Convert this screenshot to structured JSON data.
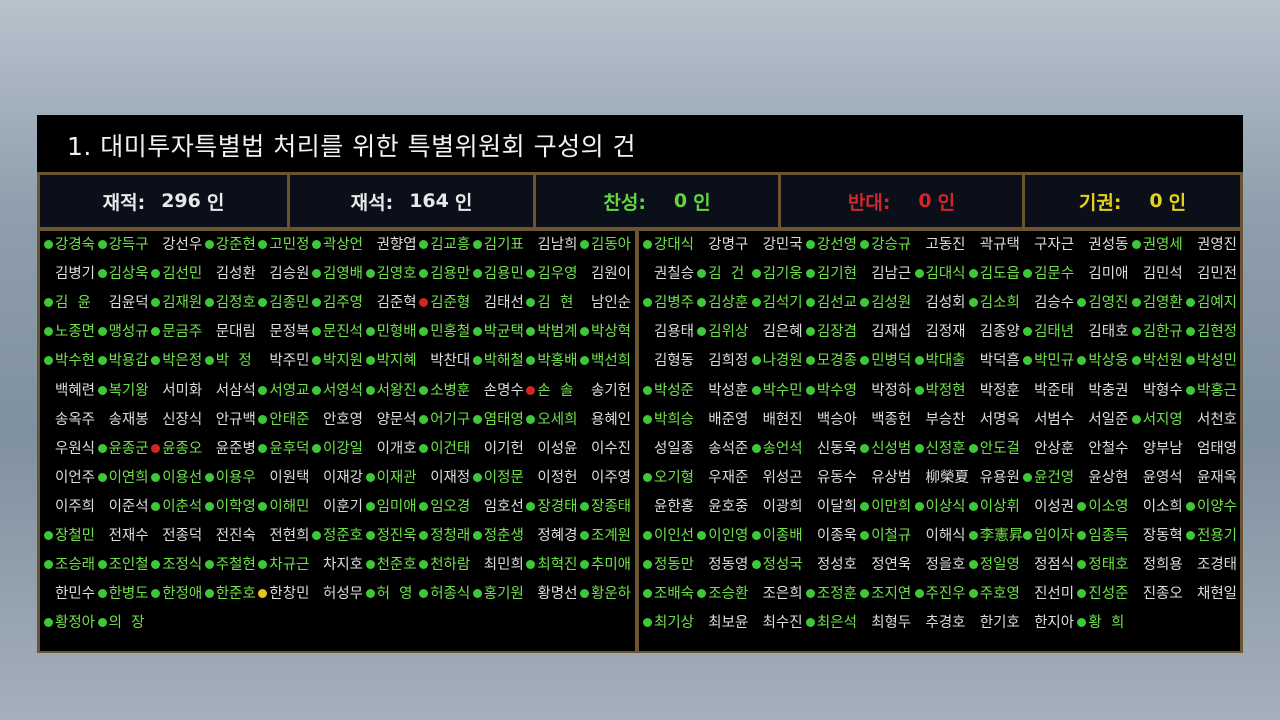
{
  "title": "1. 대미투자특별법 처리를 위한 특별위원회 구성의 건",
  "stats": [
    {
      "label": "재적:",
      "value": "296",
      "unit": "인",
      "color": "#e8e8e8"
    },
    {
      "label": "재석:",
      "value": "164",
      "unit": "인",
      "color": "#e8e8e8"
    },
    {
      "label": "찬성:",
      "value": "0",
      "unit": "인",
      "color": "#5fd93f"
    },
    {
      "label": "반대:",
      "value": "0",
      "unit": "인",
      "color": "#d3262a"
    },
    {
      "label": "기권:",
      "value": "0",
      "unit": "인",
      "color": "#e3d21c"
    }
  ],
  "status_legend": {
    "g": "green-dot (voted/present)",
    "r": "red-dot",
    "y": "yellow-dot",
    "w": "no indicator"
  },
  "panels": [
    {
      "rows": [
        [
          [
            "강경숙",
            "g"
          ],
          [
            "강득구",
            "g"
          ],
          [
            "강선우",
            "w"
          ],
          [
            "강준현",
            "g"
          ],
          [
            "고민정",
            "g"
          ],
          [
            "곽상언",
            "g"
          ],
          [
            "권향엽",
            "w"
          ],
          [
            "김교흥",
            "g"
          ],
          [
            "김기표",
            "g"
          ],
          [
            "김남희",
            "w"
          ],
          [
            "김동아",
            "g"
          ]
        ],
        [
          [
            "김병기",
            "w"
          ],
          [
            "김상욱",
            "g"
          ],
          [
            "김선민",
            "g"
          ],
          [
            "김성환",
            "w"
          ],
          [
            "김승원",
            "w"
          ],
          [
            "김영배",
            "g"
          ],
          [
            "김영호",
            "g"
          ],
          [
            "김용만",
            "g"
          ],
          [
            "김용민",
            "g"
          ],
          [
            "김우영",
            "g"
          ],
          [
            "김원이",
            "w"
          ]
        ],
        [
          [
            "김  윤",
            "g"
          ],
          [
            "김윤덕",
            "w"
          ],
          [
            "김재원",
            "g"
          ],
          [
            "김정호",
            "g"
          ],
          [
            "김종민",
            "g"
          ],
          [
            "김주영",
            "g"
          ],
          [
            "김준혁",
            "w"
          ],
          [
            "김준형",
            "r"
          ],
          [
            "김태선",
            "w"
          ],
          [
            "김  현",
            "g"
          ],
          [
            "남인순",
            "w"
          ]
        ],
        [
          [
            "노종면",
            "g"
          ],
          [
            "맹성규",
            "g"
          ],
          [
            "문금주",
            "g"
          ],
          [
            "문대림",
            "w"
          ],
          [
            "문정복",
            "w"
          ],
          [
            "문진석",
            "g"
          ],
          [
            "민형배",
            "g"
          ],
          [
            "민홍철",
            "g"
          ],
          [
            "박균택",
            "g"
          ],
          [
            "박범계",
            "g"
          ],
          [
            "박상혁",
            "g"
          ]
        ],
        [
          [
            "박수현",
            "g"
          ],
          [
            "박용갑",
            "g"
          ],
          [
            "박은정",
            "g"
          ],
          [
            "박  정",
            "g"
          ],
          [
            "박주민",
            "w"
          ],
          [
            "박지원",
            "g"
          ],
          [
            "박지혜",
            "g"
          ],
          [
            "박찬대",
            "w"
          ],
          [
            "박해철",
            "g"
          ],
          [
            "박홍배",
            "g"
          ],
          [
            "백선희",
            "g"
          ]
        ],
        [
          [
            "백혜련",
            "w"
          ],
          [
            "복기왕",
            "g"
          ],
          [
            "서미화",
            "w"
          ],
          [
            "서삼석",
            "w"
          ],
          [
            "서영교",
            "g"
          ],
          [
            "서영석",
            "g"
          ],
          [
            "서왕진",
            "g"
          ],
          [
            "소병훈",
            "g"
          ],
          [
            "손명수",
            "w"
          ],
          [
            "손  솔",
            "r"
          ],
          [
            "송기헌",
            "w"
          ]
        ],
        [
          [
            "송옥주",
            "w"
          ],
          [
            "송재봉",
            "w"
          ],
          [
            "신장식",
            "w"
          ],
          [
            "안규백",
            "w"
          ],
          [
            "안태준",
            "g"
          ],
          [
            "안호영",
            "w"
          ],
          [
            "양문석",
            "w"
          ],
          [
            "어기구",
            "g"
          ],
          [
            "염태영",
            "g"
          ],
          [
            "오세희",
            "g"
          ],
          [
            "용혜인",
            "w"
          ]
        ],
        [
          [
            "우원식",
            "w"
          ],
          [
            "윤종군",
            "g"
          ],
          [
            "윤종오",
            "r"
          ],
          [
            "윤준병",
            "w"
          ],
          [
            "윤후덕",
            "g"
          ],
          [
            "이강일",
            "g"
          ],
          [
            "이개호",
            "w"
          ],
          [
            "이건태",
            "g"
          ],
          [
            "이기헌",
            "w"
          ],
          [
            "이성윤",
            "w"
          ],
          [
            "이수진",
            "w"
          ]
        ],
        [
          [
            "이언주",
            "w"
          ],
          [
            "이연희",
            "g"
          ],
          [
            "이용선",
            "g"
          ],
          [
            "이용우",
            "g"
          ],
          [
            "이원택",
            "w"
          ],
          [
            "이재강",
            "w"
          ],
          [
            "이재관",
            "g"
          ],
          [
            "이재정",
            "w"
          ],
          [
            "이정문",
            "g"
          ],
          [
            "이정헌",
            "w"
          ],
          [
            "이주영",
            "w"
          ]
        ],
        [
          [
            "이주희",
            "w"
          ],
          [
            "이준석",
            "w"
          ],
          [
            "이춘석",
            "g"
          ],
          [
            "이학영",
            "g"
          ],
          [
            "이해민",
            "g"
          ],
          [
            "이훈기",
            "w"
          ],
          [
            "임미애",
            "g"
          ],
          [
            "임오경",
            "g"
          ],
          [
            "임호선",
            "w"
          ],
          [
            "장경태",
            "g"
          ],
          [
            "장종태",
            "g"
          ]
        ],
        [
          [
            "장철민",
            "g"
          ],
          [
            "전재수",
            "w"
          ],
          [
            "전종덕",
            "w"
          ],
          [
            "전진숙",
            "w"
          ],
          [
            "전현희",
            "w"
          ],
          [
            "정준호",
            "g"
          ],
          [
            "정진욱",
            "g"
          ],
          [
            "정청래",
            "g"
          ],
          [
            "정춘생",
            "g"
          ],
          [
            "정혜경",
            "w"
          ],
          [
            "조계원",
            "g"
          ]
        ],
        [
          [
            "조승래",
            "g"
          ],
          [
            "조인철",
            "g"
          ],
          [
            "조정식",
            "g"
          ],
          [
            "주철현",
            "g"
          ],
          [
            "차규근",
            "g"
          ],
          [
            "차지호",
            "w"
          ],
          [
            "천준호",
            "g"
          ],
          [
            "천하람",
            "g"
          ],
          [
            "최민희",
            "w"
          ],
          [
            "최혁진",
            "g"
          ],
          [
            "추미애",
            "g"
          ]
        ],
        [
          [
            "한민수",
            "w"
          ],
          [
            "한병도",
            "g"
          ],
          [
            "한정애",
            "g"
          ],
          [
            "한준호",
            "g"
          ],
          [
            "한창민",
            "y"
          ],
          [
            "허성무",
            "w"
          ],
          [
            "허  영",
            "g"
          ],
          [
            "허종식",
            "g"
          ],
          [
            "홍기원",
            "g"
          ],
          [
            "황명선",
            "w"
          ],
          [
            "황운하",
            "g"
          ]
        ],
        [
          [
            "황정아",
            "g"
          ],
          [
            "의  장",
            "g"
          ]
        ]
      ]
    },
    {
      "rows": [
        [
          [
            "강대식",
            "g"
          ],
          [
            "강명구",
            "w"
          ],
          [
            "강민국",
            "w"
          ],
          [
            "강선영",
            "g"
          ],
          [
            "강승규",
            "g"
          ],
          [
            "고동진",
            "w"
          ],
          [
            "곽규택",
            "w"
          ],
          [
            "구자근",
            "w"
          ],
          [
            "권성동",
            "w"
          ],
          [
            "권영세",
            "g"
          ],
          [
            "권영진",
            "w"
          ]
        ],
        [
          [
            "권칠승",
            "w"
          ],
          [
            "김  건",
            "g"
          ],
          [
            "김기웅",
            "g"
          ],
          [
            "김기현",
            "g"
          ],
          [
            "김남근",
            "w"
          ],
          [
            "김대식",
            "g"
          ],
          [
            "김도읍",
            "g"
          ],
          [
            "김문수",
            "g"
          ],
          [
            "김미애",
            "w"
          ],
          [
            "김민석",
            "w"
          ],
          [
            "김민전",
            "w"
          ]
        ],
        [
          [
            "김병주",
            "g"
          ],
          [
            "김상훈",
            "g"
          ],
          [
            "김석기",
            "g"
          ],
          [
            "김선교",
            "g"
          ],
          [
            "김성원",
            "g"
          ],
          [
            "김성회",
            "w"
          ],
          [
            "김소희",
            "g"
          ],
          [
            "김승수",
            "w"
          ],
          [
            "김영진",
            "g"
          ],
          [
            "김영환",
            "g"
          ],
          [
            "김예지",
            "g"
          ]
        ],
        [
          [
            "김용태",
            "w"
          ],
          [
            "김위상",
            "g"
          ],
          [
            "김은혜",
            "w"
          ],
          [
            "김장겸",
            "g"
          ],
          [
            "김재섭",
            "w"
          ],
          [
            "김정재",
            "w"
          ],
          [
            "김종양",
            "w"
          ],
          [
            "김태년",
            "g"
          ],
          [
            "김태호",
            "w"
          ],
          [
            "김한규",
            "g"
          ],
          [
            "김현정",
            "g"
          ]
        ],
        [
          [
            "김형동",
            "w"
          ],
          [
            "김희정",
            "w"
          ],
          [
            "나경원",
            "g"
          ],
          [
            "모경종",
            "g"
          ],
          [
            "민병덕",
            "g"
          ],
          [
            "박대출",
            "g"
          ],
          [
            "박덕흠",
            "w"
          ],
          [
            "박민규",
            "g"
          ],
          [
            "박상웅",
            "g"
          ],
          [
            "박선원",
            "g"
          ],
          [
            "박성민",
            "g"
          ]
        ],
        [
          [
            "박성준",
            "g"
          ],
          [
            "박성훈",
            "w"
          ],
          [
            "박수민",
            "g"
          ],
          [
            "박수영",
            "g"
          ],
          [
            "박정하",
            "w"
          ],
          [
            "박정현",
            "g"
          ],
          [
            "박정훈",
            "w"
          ],
          [
            "박준태",
            "w"
          ],
          [
            "박충권",
            "w"
          ],
          [
            "박형수",
            "w"
          ],
          [
            "박홍근",
            "g"
          ]
        ],
        [
          [
            "박희승",
            "g"
          ],
          [
            "배준영",
            "w"
          ],
          [
            "배현진",
            "w"
          ],
          [
            "백승아",
            "w"
          ],
          [
            "백종헌",
            "w"
          ],
          [
            "부승찬",
            "w"
          ],
          [
            "서명옥",
            "w"
          ],
          [
            "서범수",
            "w"
          ],
          [
            "서일준",
            "w"
          ],
          [
            "서지영",
            "g"
          ],
          [
            "서천호",
            "w"
          ]
        ],
        [
          [
            "성일종",
            "w"
          ],
          [
            "송석준",
            "w"
          ],
          [
            "송언석",
            "g"
          ],
          [
            "신동욱",
            "w"
          ],
          [
            "신성범",
            "g"
          ],
          [
            "신정훈",
            "g"
          ],
          [
            "안도걸",
            "g"
          ],
          [
            "안상훈",
            "w"
          ],
          [
            "안철수",
            "w"
          ],
          [
            "양부남",
            "w"
          ],
          [
            "엄태영",
            "w"
          ]
        ],
        [
          [
            "오기형",
            "g"
          ],
          [
            "우재준",
            "w"
          ],
          [
            "위성곤",
            "w"
          ],
          [
            "유동수",
            "w"
          ],
          [
            "유상범",
            "w"
          ],
          [
            "柳榮夏",
            "w"
          ],
          [
            "유용원",
            "w"
          ],
          [
            "윤건영",
            "g"
          ],
          [
            "윤상현",
            "w"
          ],
          [
            "윤영석",
            "w"
          ],
          [
            "윤재옥",
            "w"
          ]
        ],
        [
          [
            "윤한홍",
            "w"
          ],
          [
            "윤호중",
            "w"
          ],
          [
            "이광희",
            "w"
          ],
          [
            "이달희",
            "w"
          ],
          [
            "이만희",
            "g"
          ],
          [
            "이상식",
            "g"
          ],
          [
            "이상휘",
            "g"
          ],
          [
            "이성권",
            "w"
          ],
          [
            "이소영",
            "g"
          ],
          [
            "이소희",
            "w"
          ],
          [
            "이양수",
            "g"
          ]
        ],
        [
          [
            "이인선",
            "g"
          ],
          [
            "이인영",
            "g"
          ],
          [
            "이종배",
            "g"
          ],
          [
            "이종욱",
            "w"
          ],
          [
            "이철규",
            "g"
          ],
          [
            "이해식",
            "w"
          ],
          [
            "李憲昇",
            "g"
          ],
          [
            "임이자",
            "g"
          ],
          [
            "임종득",
            "g"
          ],
          [
            "장동혁",
            "w"
          ],
          [
            "전용기",
            "g"
          ]
        ],
        [
          [
            "정동만",
            "g"
          ],
          [
            "정동영",
            "w"
          ],
          [
            "정성국",
            "g"
          ],
          [
            "정성호",
            "w"
          ],
          [
            "정연욱",
            "w"
          ],
          [
            "정을호",
            "w"
          ],
          [
            "정일영",
            "g"
          ],
          [
            "정점식",
            "w"
          ],
          [
            "정태호",
            "g"
          ],
          [
            "정희용",
            "w"
          ],
          [
            "조경태",
            "w"
          ]
        ],
        [
          [
            "조배숙",
            "g"
          ],
          [
            "조승환",
            "g"
          ],
          [
            "조은희",
            "w"
          ],
          [
            "조정훈",
            "g"
          ],
          [
            "조지연",
            "g"
          ],
          [
            "주진우",
            "g"
          ],
          [
            "주호영",
            "g"
          ],
          [
            "진선미",
            "w"
          ],
          [
            "진성준",
            "g"
          ],
          [
            "진종오",
            "w"
          ],
          [
            "채현일",
            "w"
          ]
        ],
        [
          [
            "최기상",
            "g"
          ],
          [
            "최보윤",
            "w"
          ],
          [
            "최수진",
            "w"
          ],
          [
            "최은석",
            "g"
          ],
          [
            "최형두",
            "w"
          ],
          [
            "추경호",
            "w"
          ],
          [
            "한기호",
            "w"
          ],
          [
            "한지아",
            "w"
          ],
          [
            "황  희",
            "g"
          ]
        ]
      ]
    }
  ]
}
